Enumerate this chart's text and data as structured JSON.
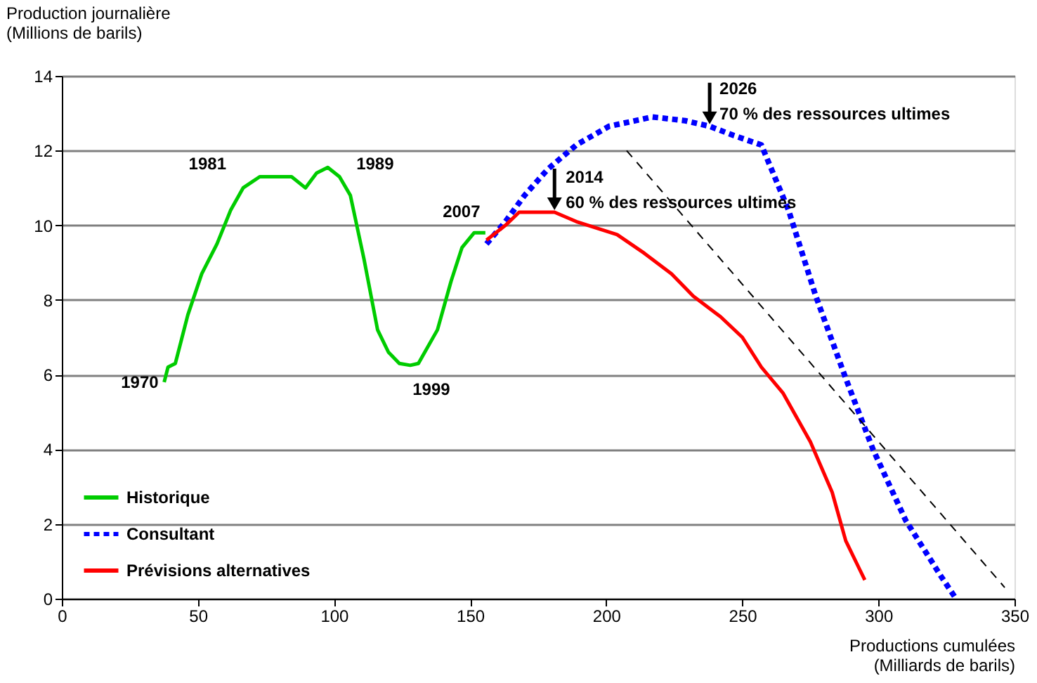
{
  "chart_data": {
    "type": "line",
    "ylabel": "Production journalière\n(Millions de barils)",
    "xlabel": "Productions cumulées\n(Milliards de barils)",
    "xlim": [
      0,
      350
    ],
    "xticks": [
      0,
      50,
      100,
      150,
      200,
      250,
      300,
      350
    ],
    "ylim": [
      0,
      14
    ],
    "yticks": [
      0,
      2,
      4,
      6,
      8,
      10,
      12,
      14
    ],
    "grid": "y",
    "legend": "bottom left",
    "series": [
      {
        "name": "Historique",
        "color": "#00cc00",
        "line_style": "solid",
        "x": [
          37.6,
          39,
          41.7,
          46.3,
          51.4,
          57,
          62,
          66.6,
          72.7,
          84.4,
          89.5,
          93.6,
          97.7,
          102,
          106,
          111,
          116,
          120,
          124,
          128,
          131,
          138,
          143,
          147,
          151.5,
          155.6
        ],
        "values": [
          5.8,
          6.2,
          6.3,
          7.6,
          8.7,
          9.5,
          10.4,
          11.0,
          11.3,
          11.3,
          11.0,
          11.4,
          11.55,
          11.3,
          10.8,
          9.1,
          7.2,
          6.6,
          6.3,
          6.25,
          6.3,
          7.2,
          8.5,
          9.4,
          9.8,
          9.8
        ]
      },
      {
        "name": "Consultant",
        "color": "#0000ff",
        "line_style": "dotted",
        "x": [
          156,
          163,
          170,
          178.5,
          189,
          201,
          217,
          229,
          238,
          247,
          257,
          267,
          277,
          288,
          298,
          310,
          323,
          328.5
        ],
        "values": [
          9.5,
          10.1,
          10.8,
          11.5,
          12.15,
          12.65,
          12.9,
          12.8,
          12.65,
          12.4,
          12.15,
          10.4,
          8.1,
          5.9,
          4.0,
          2.1,
          0.6,
          0
        ]
      },
      {
        "name": "Prévisions alternatives",
        "color": "#ff0000",
        "line_style": "solid",
        "x": [
          156,
          163,
          168,
          181,
          189,
          204,
          214,
          224,
          232,
          242,
          250,
          257,
          265,
          275,
          283,
          288,
          293,
          295
        ],
        "values": [
          9.6,
          10.0,
          10.35,
          10.35,
          10.1,
          9.75,
          9.25,
          8.7,
          8.1,
          7.55,
          7.0,
          6.2,
          5.5,
          4.2,
          2.85,
          1.55,
          0.8,
          0.5
        ]
      },
      {
        "color": "#000000",
        "line_style": "dashed",
        "x": [
          207.5,
          346.4
        ],
        "values": [
          12.0,
          0.3
        ]
      }
    ],
    "annotations": [
      {
        "text": "1970",
        "x": 37.6,
        "y": 5.8
      },
      {
        "text": "1981",
        "x": 66.6,
        "y": 11.0
      },
      {
        "text": "1989",
        "x": 102,
        "y": 11.3
      },
      {
        "text": "1999",
        "x": 128,
        "y": 6.25
      },
      {
        "text": "2007",
        "x": 155.6,
        "y": 9.8
      },
      {
        "text": "2014\n60 % des ressources ultimes",
        "x": 181,
        "y": 10.35
      },
      {
        "text": "2026\n70 % des ressources ultimes",
        "x": 238,
        "y": 12.65
      }
    ]
  }
}
